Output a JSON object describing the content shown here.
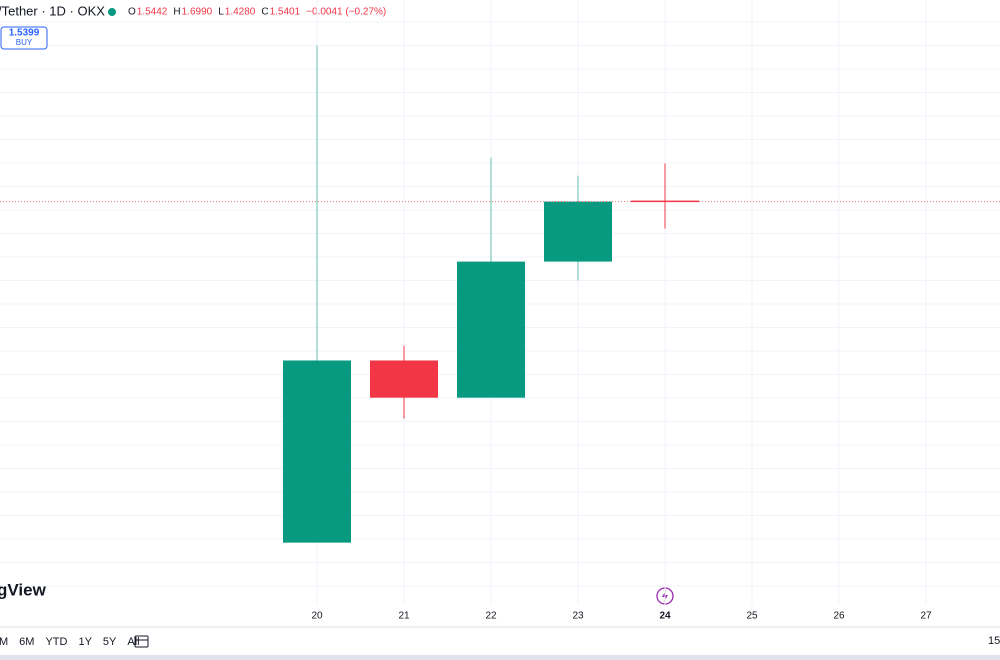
{
  "header": {
    "symbol": "/Tether · 1D · OKX",
    "ohlc": [
      {
        "label": "O",
        "value": "1.5442"
      },
      {
        "label": "H",
        "value": "1.6990"
      },
      {
        "label": "L",
        "value": "1.4280"
      },
      {
        "label": "C",
        "value": "1.5401"
      }
    ],
    "change": "−0.0041 (−0.27%)",
    "price": "1.5399",
    "action": "BUY",
    "brand": "gView",
    "corner": "15"
  },
  "toolbar": [
    "M",
    "6M",
    "YTD",
    "1Y",
    "5Y",
    "All"
  ],
  "chart_data": {
    "type": "candlestick",
    "categories": [
      "20",
      "21",
      "22",
      "23",
      "24",
      "25",
      "26",
      "27"
    ],
    "open": [
      0.119,
      0.878,
      0.723,
      1.29,
      1.5442,
      null,
      null,
      null
    ],
    "high": [
      2.19,
      0.94,
      1.723,
      1.648,
      1.699,
      null,
      null,
      null
    ],
    "low": [
      0.119,
      0.636,
      0.723,
      1.211,
      1.428,
      null,
      null,
      null
    ],
    "close": [
      0.878,
      0.723,
      1.29,
      1.54,
      1.5401,
      null,
      null,
      null
    ],
    "up_color": "#089981",
    "down_color": "#f23645",
    "ylim": [
      -0.12,
      2.38
    ]
  }
}
